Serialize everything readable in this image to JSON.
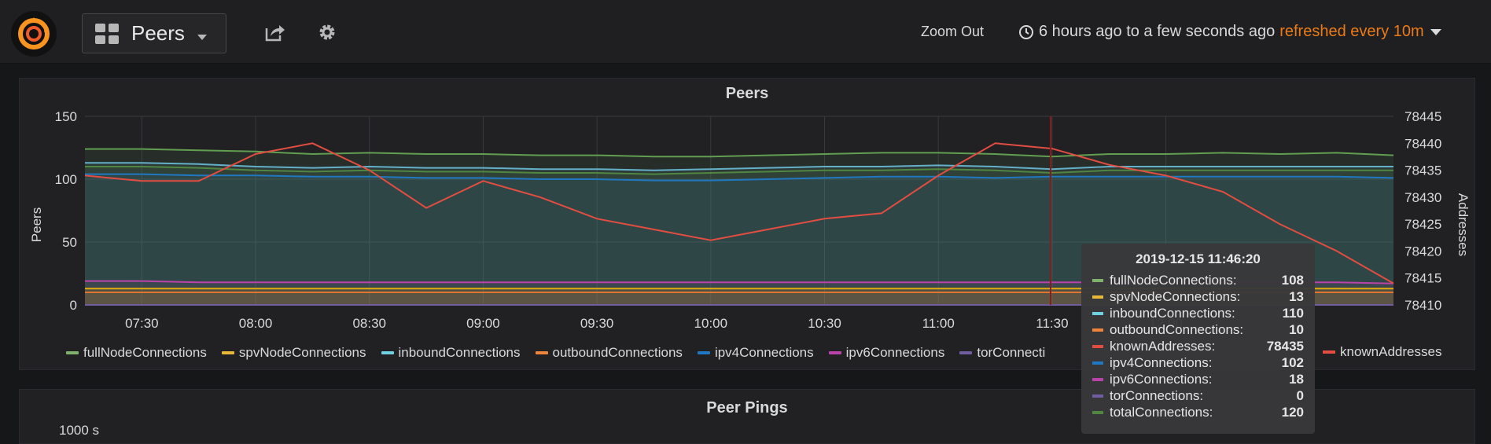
{
  "header": {
    "dashboard_title": "Peers",
    "zoom_out": "Zoom Out",
    "time_range": "6 hours ago to a few seconds ago",
    "refresh": "refreshed every 10m"
  },
  "panels": [
    {
      "title": "Peers"
    },
    {
      "title": "Peer Pings",
      "y_tick_top": "1000 s"
    }
  ],
  "colors": {
    "fullNodeConnections": "#629e51",
    "spvNodeConnections": "#e5ac0e",
    "inboundConnections": "#64b0c8",
    "outboundConnections": "#e0752d",
    "ipv4Connections": "#1f78c1",
    "ipv6Connections": "#ba43a9",
    "torConnections": "#705da0",
    "knownAddresses": "#e24d42",
    "totalConnections": "#508642"
  },
  "legend": [
    {
      "name": "fullNodeConnections",
      "color": "#7eb26d"
    },
    {
      "name": "spvNodeConnections",
      "color": "#eab839"
    },
    {
      "name": "inboundConnections",
      "color": "#6ed0e0"
    },
    {
      "name": "outboundConnections",
      "color": "#ef843c"
    },
    {
      "name": "ipv4Connections",
      "color": "#1f78c1"
    },
    {
      "name": "ipv6Connections",
      "color": "#ba43a9"
    },
    {
      "name": "torConnecti",
      "color": "#705da0"
    }
  ],
  "legend_right": {
    "name": "knownAddresses",
    "color": "#e24d42"
  },
  "tooltip": {
    "title": "2019-12-15 11:46:20",
    "rows": [
      {
        "name": "fullNodeConnections:",
        "value": "108",
        "color": "#7eb26d"
      },
      {
        "name": "spvNodeConnections:",
        "value": "13",
        "color": "#eab839"
      },
      {
        "name": "inboundConnections:",
        "value": "110",
        "color": "#6ed0e0"
      },
      {
        "name": "outboundConnections:",
        "value": "10",
        "color": "#ef843c"
      },
      {
        "name": "knownAddresses:",
        "value": "78435",
        "color": "#e24d42"
      },
      {
        "name": "ipv4Connections:",
        "value": "102",
        "color": "#1f78c1"
      },
      {
        "name": "ipv6Connections:",
        "value": "18",
        "color": "#ba43a9"
      },
      {
        "name": "torConnections:",
        "value": "0",
        "color": "#705da0"
      },
      {
        "name": "totalConnections:",
        "value": "120",
        "color": "#508642"
      }
    ]
  },
  "chart_data": {
    "type": "line",
    "title": "Peers",
    "ylabel": "Peers",
    "y2label": "Addresses",
    "ylim": [
      0,
      150
    ],
    "y2lim": [
      78410,
      78445
    ],
    "yticks": [
      "0",
      "50",
      "100",
      "150"
    ],
    "y2ticks": [
      "78410",
      "78415",
      "78420",
      "78425",
      "78430",
      "78435",
      "78440",
      "78445"
    ],
    "xticks": [
      "07:30",
      "08:00",
      "08:30",
      "09:00",
      "09:30",
      "10:00",
      "10:30",
      "11:00",
      "11:30",
      "12:00"
    ],
    "x": [
      "07:15",
      "07:30",
      "07:45",
      "08:00",
      "08:15",
      "08:30",
      "08:45",
      "09:00",
      "09:15",
      "09:30",
      "09:45",
      "10:00",
      "10:15",
      "10:30",
      "10:45",
      "11:00",
      "11:15",
      "11:30",
      "11:45",
      "12:00",
      "12:15",
      "12:30",
      "12:45",
      "13:00"
    ],
    "series": [
      {
        "name": "fullNodeConnections",
        "axis": "left",
        "values": [
          124,
          124,
          123,
          122,
          120,
          121,
          120,
          120,
          119,
          119,
          118,
          118,
          119,
          120,
          121,
          121,
          120,
          118,
          120,
          120,
          121,
          120,
          121,
          119
        ]
      },
      {
        "name": "inboundConnections",
        "axis": "left",
        "values": [
          113,
          113,
          112,
          110,
          109,
          110,
          109,
          109,
          108,
          108,
          107,
          108,
          109,
          110,
          110,
          111,
          110,
          108,
          110,
          110,
          110,
          110,
          110,
          110
        ]
      },
      {
        "name": "totalConnections",
        "axis": "left",
        "values": [
          110,
          110,
          109,
          107,
          106,
          107,
          106,
          106,
          105,
          105,
          104,
          105,
          106,
          107,
          107,
          108,
          107,
          105,
          107,
          107,
          107,
          107,
          107,
          107
        ]
      },
      {
        "name": "ipv4Connections",
        "axis": "left",
        "values": [
          104,
          104,
          103,
          103,
          102,
          102,
          101,
          101,
          100,
          100,
          99,
          99,
          100,
          101,
          102,
          102,
          101,
          102,
          102,
          102,
          102,
          102,
          102,
          101
        ]
      },
      {
        "name": "ipv6Connections",
        "axis": "left",
        "values": [
          19,
          19,
          18,
          18,
          18,
          18,
          18,
          18,
          18,
          18,
          18,
          18,
          18,
          18,
          18,
          18,
          18,
          18,
          18,
          18,
          18,
          18,
          18,
          17
        ]
      },
      {
        "name": "spvNodeConnections",
        "axis": "left",
        "values": [
          13,
          13,
          13,
          13,
          13,
          13,
          13,
          13,
          13,
          13,
          13,
          13,
          13,
          13,
          13,
          13,
          13,
          13,
          13,
          13,
          13,
          13,
          13,
          13
        ]
      },
      {
        "name": "outboundConnections",
        "axis": "left",
        "values": [
          10,
          10,
          10,
          10,
          10,
          10,
          10,
          10,
          10,
          10,
          10,
          10,
          10,
          10,
          10,
          10,
          10,
          10,
          10,
          10,
          10,
          10,
          10,
          10
        ]
      },
      {
        "name": "torConnections",
        "axis": "left",
        "values": [
          0,
          0,
          0,
          0,
          0,
          0,
          0,
          0,
          0,
          0,
          0,
          0,
          0,
          0,
          0,
          0,
          0,
          0,
          0,
          0,
          0,
          0,
          0,
          0
        ]
      },
      {
        "name": "knownAddresses",
        "axis": "right",
        "values": [
          78434,
          78433,
          78433,
          78438,
          78440,
          78435,
          78428,
          78433,
          78430,
          78426,
          78424,
          78422,
          78424,
          78426,
          78427,
          78434,
          78440,
          78439,
          78436,
          78434,
          78431,
          78425,
          78420,
          78414
        ]
      }
    ]
  }
}
